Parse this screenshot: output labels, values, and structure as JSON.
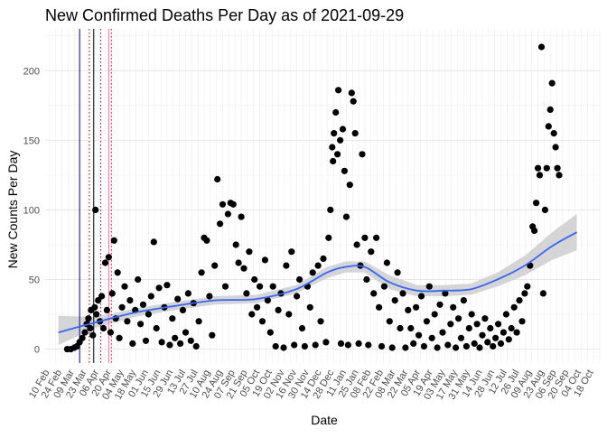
{
  "chart_data": {
    "type": "scatter",
    "title": "New Confirmed Deaths Per Day as of 2021-09-29",
    "xlabel": "Date",
    "ylabel": "New Counts Per Day",
    "ylim": [
      -10,
      230
    ],
    "yticks": [
      0,
      50,
      100,
      150,
      200
    ],
    "xlim": [
      "2020-02-05",
      "2021-10-25"
    ],
    "grid": true,
    "legend": "none",
    "x_tick_labels": [
      "10 Feb",
      "24 Feb",
      "09 Mar",
      "23 Mar",
      "06 Apr",
      "20 Apr",
      "04 May",
      "18 May",
      "01 Jun",
      "15 Jun",
      "29 Jun",
      "13 Jul",
      "27 Jul",
      "10 Aug",
      "24 Aug",
      "07 Sep",
      "21 Sep",
      "05 Oct",
      "19 Oct",
      "02 Nov",
      "16 Nov",
      "30 Nov",
      "14 Dec",
      "28 Dec",
      "11 Jan",
      "25 Jan",
      "08 Feb",
      "22 Feb",
      "08 Mar",
      "22 Mar",
      "05 Apr",
      "19 Apr",
      "03 May",
      "17 May",
      "31 May",
      "14 Jun",
      "28 Jun",
      "12 Jul",
      "26 Jul",
      "09 Aug",
      "23 Aug",
      "06 Sep",
      "20 Sep",
      "04 Oct",
      "18 Oct"
    ],
    "vertical_lines": [
      {
        "date": "2020-03-15",
        "color": "#00008b",
        "style": "solid"
      },
      {
        "date": "2020-03-26",
        "color": "#8b0000",
        "style": "dotted"
      },
      {
        "date": "2020-03-31",
        "color": "#000000",
        "style": "solid"
      },
      {
        "date": "2020-04-08",
        "color": "#8b0000",
        "style": "dotted"
      },
      {
        "date": "2020-04-17",
        "color": "#ff69b4",
        "style": "solid"
      },
      {
        "date": "2020-04-20",
        "color": "#ff0000",
        "style": "dotted"
      }
    ],
    "smooth": {
      "color": "#3366ff",
      "band_color": "#d0d0d0",
      "x": [
        "2020-02-20",
        "2020-04-01",
        "2020-05-15",
        "2020-07-01",
        "2020-08-15",
        "2020-10-01",
        "2020-11-15",
        "2020-12-20",
        "2021-01-10",
        "2021-02-01",
        "2021-03-01",
        "2021-04-01",
        "2021-05-01",
        "2021-06-01",
        "2021-07-01",
        "2021-08-01",
        "2021-09-01",
        "2021-09-29"
      ],
      "y": [
        12,
        19,
        26,
        31,
        35,
        36,
        43,
        55,
        59,
        59,
        48,
        42,
        42,
        43,
        50,
        60,
        74,
        84
      ],
      "ymin": [
        3,
        15,
        23,
        28,
        32,
        33,
        40,
        51,
        55,
        55,
        43,
        38,
        38,
        39,
        45,
        53,
        64,
        71
      ],
      "ymax": [
        24,
        23,
        29,
        34,
        38,
        39,
        46,
        59,
        63,
        63,
        53,
        46,
        46,
        47,
        55,
        67,
        84,
        97
      ]
    },
    "points": [
      {
        "x": "2020-03-01",
        "y": 0
      },
      {
        "x": "2020-03-05",
        "y": 0
      },
      {
        "x": "2020-03-09",
        "y": 1
      },
      {
        "x": "2020-03-12",
        "y": 2
      },
      {
        "x": "2020-03-15",
        "y": 5
      },
      {
        "x": "2020-03-18",
        "y": 8
      },
      {
        "x": "2020-03-21",
        "y": 12
      },
      {
        "x": "2020-03-23",
        "y": 18
      },
      {
        "x": "2020-03-25",
        "y": 22
      },
      {
        "x": "2020-03-27",
        "y": 15
      },
      {
        "x": "2020-03-28",
        "y": 28
      },
      {
        "x": "2020-03-30",
        "y": 10
      },
      {
        "x": "2020-04-01",
        "y": 30
      },
      {
        "x": "2020-04-02",
        "y": 100
      },
      {
        "x": "2020-04-03",
        "y": 25
      },
      {
        "x": "2020-04-05",
        "y": 35
      },
      {
        "x": "2020-04-07",
        "y": 20
      },
      {
        "x": "2020-04-09",
        "y": 38
      },
      {
        "x": "2020-04-11",
        "y": 15
      },
      {
        "x": "2020-04-13",
        "y": 62
      },
      {
        "x": "2020-04-15",
        "y": 28
      },
      {
        "x": "2020-04-17",
        "y": 66
      },
      {
        "x": "2020-04-19",
        "y": 12
      },
      {
        "x": "2020-04-21",
        "y": 40
      },
      {
        "x": "2020-04-23",
        "y": 78
      },
      {
        "x": "2020-04-25",
        "y": 22
      },
      {
        "x": "2020-04-27",
        "y": 55
      },
      {
        "x": "2020-04-29",
        "y": 8
      },
      {
        "x": "2020-05-02",
        "y": 30
      },
      {
        "x": "2020-05-05",
        "y": 45
      },
      {
        "x": "2020-05-08",
        "y": 20
      },
      {
        "x": "2020-05-11",
        "y": 35
      },
      {
        "x": "2020-05-14",
        "y": 4
      },
      {
        "x": "2020-05-17",
        "y": 28
      },
      {
        "x": "2020-05-20",
        "y": 50
      },
      {
        "x": "2020-05-23",
        "y": 18
      },
      {
        "x": "2020-05-26",
        "y": 32
      },
      {
        "x": "2020-05-29",
        "y": 6
      },
      {
        "x": "2020-06-01",
        "y": 25
      },
      {
        "x": "2020-06-04",
        "y": 38
      },
      {
        "x": "2020-06-07",
        "y": 77
      },
      {
        "x": "2020-06-10",
        "y": 15
      },
      {
        "x": "2020-06-13",
        "y": 44
      },
      {
        "x": "2020-06-16",
        "y": 5
      },
      {
        "x": "2020-06-19",
        "y": 30
      },
      {
        "x": "2020-06-22",
        "y": 46
      },
      {
        "x": "2020-06-25",
        "y": 3
      },
      {
        "x": "2020-06-28",
        "y": 22
      },
      {
        "x": "2020-07-01",
        "y": 8
      },
      {
        "x": "2020-07-04",
        "y": 36
      },
      {
        "x": "2020-07-07",
        "y": 4
      },
      {
        "x": "2020-07-10",
        "y": 28
      },
      {
        "x": "2020-07-13",
        "y": 12
      },
      {
        "x": "2020-07-16",
        "y": 40
      },
      {
        "x": "2020-07-19",
        "y": 6
      },
      {
        "x": "2020-07-22",
        "y": 33
      },
      {
        "x": "2020-07-25",
        "y": 2
      },
      {
        "x": "2020-07-28",
        "y": 20
      },
      {
        "x": "2020-07-31",
        "y": 55
      },
      {
        "x": "2020-08-03",
        "y": 80
      },
      {
        "x": "2020-08-06",
        "y": 78
      },
      {
        "x": "2020-08-09",
        "y": 38
      },
      {
        "x": "2020-08-12",
        "y": 10
      },
      {
        "x": "2020-08-15",
        "y": 60
      },
      {
        "x": "2020-08-18",
        "y": 122
      },
      {
        "x": "2020-08-21",
        "y": 90
      },
      {
        "x": "2020-08-24",
        "y": 104
      },
      {
        "x": "2020-08-27",
        "y": 45
      },
      {
        "x": "2020-08-30",
        "y": 97
      },
      {
        "x": "2020-09-02",
        "y": 105
      },
      {
        "x": "2020-09-05",
        "y": 104
      },
      {
        "x": "2020-09-08",
        "y": 75
      },
      {
        "x": "2020-09-11",
        "y": 62
      },
      {
        "x": "2020-09-14",
        "y": 95
      },
      {
        "x": "2020-09-17",
        "y": 58
      },
      {
        "x": "2020-09-20",
        "y": 40
      },
      {
        "x": "2020-09-23",
        "y": 70
      },
      {
        "x": "2020-09-26",
        "y": 25
      },
      {
        "x": "2020-09-29",
        "y": 50
      },
      {
        "x": "2020-10-02",
        "y": 30
      },
      {
        "x": "2020-10-05",
        "y": 45
      },
      {
        "x": "2020-10-08",
        "y": 20
      },
      {
        "x": "2020-10-11",
        "y": 64
      },
      {
        "x": "2020-10-14",
        "y": 35
      },
      {
        "x": "2020-10-17",
        "y": 12
      },
      {
        "x": "2020-10-20",
        "y": 45
      },
      {
        "x": "2020-10-23",
        "y": 2
      },
      {
        "x": "2020-10-26",
        "y": 28
      },
      {
        "x": "2020-10-29",
        "y": 40
      },
      {
        "x": "2020-11-01",
        "y": 1
      },
      {
        "x": "2020-11-04",
        "y": 60
      },
      {
        "x": "2020-11-07",
        "y": 25
      },
      {
        "x": "2020-11-10",
        "y": 70
      },
      {
        "x": "2020-11-13",
        "y": 3
      },
      {
        "x": "2020-11-16",
        "y": 38
      },
      {
        "x": "2020-11-19",
        "y": 50
      },
      {
        "x": "2020-11-22",
        "y": 15
      },
      {
        "x": "2020-11-25",
        "y": 2
      },
      {
        "x": "2020-11-28",
        "y": 45
      },
      {
        "x": "2020-12-01",
        "y": 30
      },
      {
        "x": "2020-12-04",
        "y": 55
      },
      {
        "x": "2020-12-07",
        "y": 3
      },
      {
        "x": "2020-12-10",
        "y": 60
      },
      {
        "x": "2020-12-13",
        "y": 20
      },
      {
        "x": "2020-12-16",
        "y": 65
      },
      {
        "x": "2020-12-19",
        "y": 5
      },
      {
        "x": "2020-12-22",
        "y": 80
      },
      {
        "x": "2020-12-24",
        "y": 100
      },
      {
        "x": "2020-12-26",
        "y": 145
      },
      {
        "x": "2020-12-27",
        "y": 135
      },
      {
        "x": "2020-12-28",
        "y": 155
      },
      {
        "x": "2020-12-30",
        "y": 170
      },
      {
        "x": "2021-01-01",
        "y": 140
      },
      {
        "x": "2021-01-02",
        "y": 186
      },
      {
        "x": "2021-01-04",
        "y": 150
      },
      {
        "x": "2021-01-05",
        "y": 4
      },
      {
        "x": "2021-01-07",
        "y": 158
      },
      {
        "x": "2021-01-09",
        "y": 128
      },
      {
        "x": "2021-01-11",
        "y": 95
      },
      {
        "x": "2021-01-13",
        "y": 3
      },
      {
        "x": "2021-01-15",
        "y": 118
      },
      {
        "x": "2021-01-17",
        "y": 184
      },
      {
        "x": "2021-01-19",
        "y": 178
      },
      {
        "x": "2021-01-21",
        "y": 155
      },
      {
        "x": "2021-01-23",
        "y": 75
      },
      {
        "x": "2021-01-25",
        "y": 4
      },
      {
        "x": "2021-01-27",
        "y": 60
      },
      {
        "x": "2021-01-29",
        "y": 140
      },
      {
        "x": "2021-02-01",
        "y": 80
      },
      {
        "x": "2021-02-03",
        "y": 50
      },
      {
        "x": "2021-02-05",
        "y": 3
      },
      {
        "x": "2021-02-08",
        "y": 70
      },
      {
        "x": "2021-02-11",
        "y": 40
      },
      {
        "x": "2021-02-14",
        "y": 80
      },
      {
        "x": "2021-02-17",
        "y": 30
      },
      {
        "x": "2021-02-20",
        "y": 2
      },
      {
        "x": "2021-02-23",
        "y": 45
      },
      {
        "x": "2021-02-26",
        "y": 62
      },
      {
        "x": "2021-03-01",
        "y": 20
      },
      {
        "x": "2021-03-04",
        "y": 1
      },
      {
        "x": "2021-03-07",
        "y": 35
      },
      {
        "x": "2021-03-10",
        "y": 55
      },
      {
        "x": "2021-03-13",
        "y": 15
      },
      {
        "x": "2021-03-16",
        "y": 40
      },
      {
        "x": "2021-03-19",
        "y": 1
      },
      {
        "x": "2021-03-22",
        "y": 28
      },
      {
        "x": "2021-03-25",
        "y": 15
      },
      {
        "x": "2021-03-28",
        "y": 4
      },
      {
        "x": "2021-03-31",
        "y": 30
      },
      {
        "x": "2021-04-03",
        "y": 10
      },
      {
        "x": "2021-04-06",
        "y": 38
      },
      {
        "x": "2021-04-09",
        "y": 2
      },
      {
        "x": "2021-04-12",
        "y": 20
      },
      {
        "x": "2021-04-15",
        "y": 45
      },
      {
        "x": "2021-04-18",
        "y": 8
      },
      {
        "x": "2021-04-21",
        "y": 25
      },
      {
        "x": "2021-04-24",
        "y": 1
      },
      {
        "x": "2021-04-27",
        "y": 32
      },
      {
        "x": "2021-04-30",
        "y": 12
      },
      {
        "x": "2021-05-03",
        "y": 40
      },
      {
        "x": "2021-05-06",
        "y": 3
      },
      {
        "x": "2021-05-09",
        "y": 18
      },
      {
        "x": "2021-05-12",
        "y": 30
      },
      {
        "x": "2021-05-15",
        "y": 1
      },
      {
        "x": "2021-05-18",
        "y": 22
      },
      {
        "x": "2021-05-21",
        "y": 8
      },
      {
        "x": "2021-05-24",
        "y": 35
      },
      {
        "x": "2021-05-27",
        "y": 2
      },
      {
        "x": "2021-05-30",
        "y": 15
      },
      {
        "x": "2021-06-02",
        "y": 25
      },
      {
        "x": "2021-06-05",
        "y": 4
      },
      {
        "x": "2021-06-08",
        "y": 18
      },
      {
        "x": "2021-06-11",
        "y": 1
      },
      {
        "x": "2021-06-14",
        "y": 10
      },
      {
        "x": "2021-06-17",
        "y": 22
      },
      {
        "x": "2021-06-20",
        "y": 5
      },
      {
        "x": "2021-06-23",
        "y": 15
      },
      {
        "x": "2021-06-26",
        "y": 2
      },
      {
        "x": "2021-06-29",
        "y": 8
      },
      {
        "x": "2021-07-02",
        "y": 18
      },
      {
        "x": "2021-07-05",
        "y": 4
      },
      {
        "x": "2021-07-08",
        "y": 12
      },
      {
        "x": "2021-07-11",
        "y": 25
      },
      {
        "x": "2021-07-14",
        "y": 7
      },
      {
        "x": "2021-07-17",
        "y": 15
      },
      {
        "x": "2021-07-20",
        "y": 30
      },
      {
        "x": "2021-07-23",
        "y": 12
      },
      {
        "x": "2021-07-26",
        "y": 35
      },
      {
        "x": "2021-07-29",
        "y": 20
      },
      {
        "x": "2021-08-01",
        "y": 40
      },
      {
        "x": "2021-08-04",
        "y": 45
      },
      {
        "x": "2021-08-07",
        "y": 60
      },
      {
        "x": "2021-08-10",
        "y": 88
      },
      {
        "x": "2021-08-12",
        "y": 85
      },
      {
        "x": "2021-08-14",
        "y": 105
      },
      {
        "x": "2021-08-16",
        "y": 130
      },
      {
        "x": "2021-08-18",
        "y": 125
      },
      {
        "x": "2021-08-20",
        "y": 217
      },
      {
        "x": "2021-08-22",
        "y": 40
      },
      {
        "x": "2021-08-24",
        "y": 100
      },
      {
        "x": "2021-08-26",
        "y": 130
      },
      {
        "x": "2021-08-28",
        "y": 160
      },
      {
        "x": "2021-08-30",
        "y": 172
      },
      {
        "x": "2021-09-01",
        "y": 191
      },
      {
        "x": "2021-09-03",
        "y": 155
      },
      {
        "x": "2021-09-05",
        "y": 145
      },
      {
        "x": "2021-09-07",
        "y": 130
      },
      {
        "x": "2021-09-09",
        "y": 125
      }
    ]
  }
}
